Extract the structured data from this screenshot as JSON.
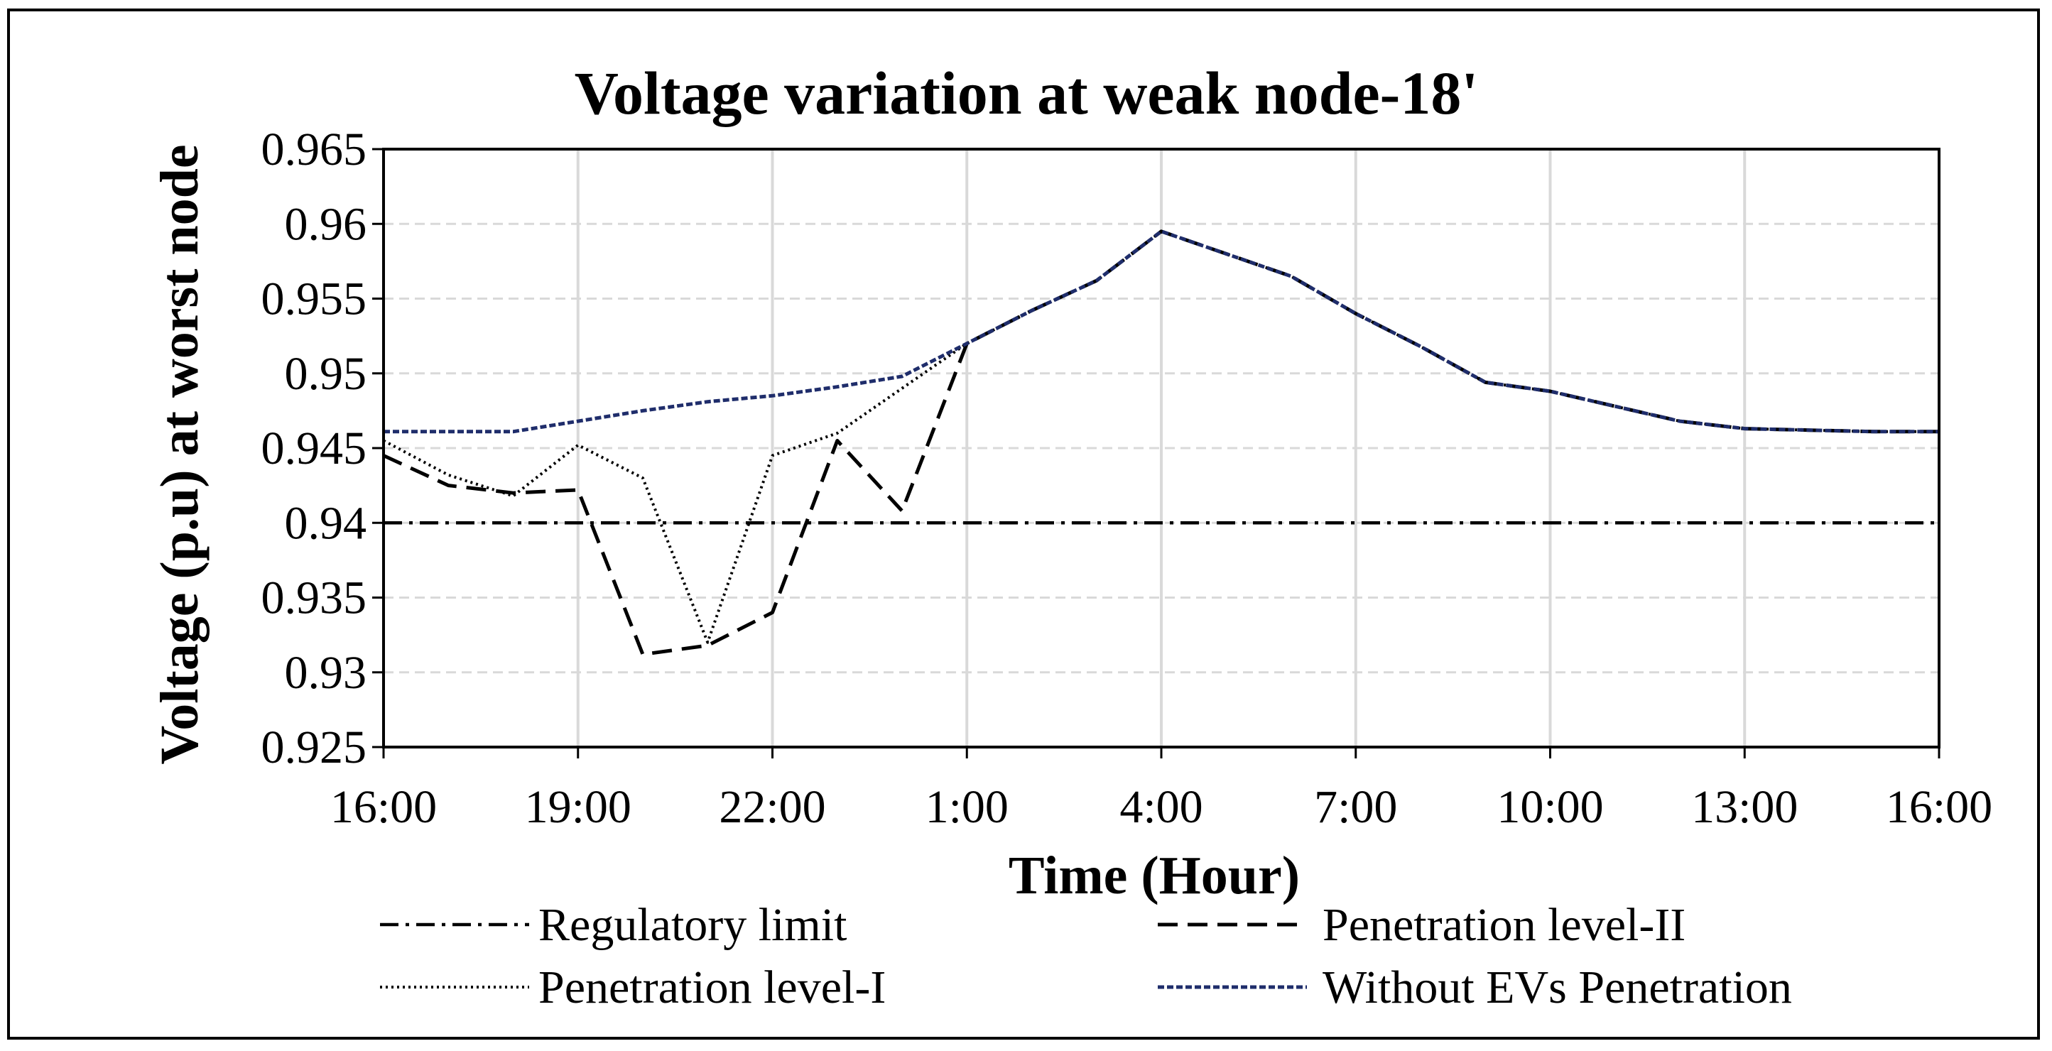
{
  "chart_data": {
    "type": "line",
    "title": "Voltage variation at weak node-18'",
    "xlabel": "Time (Hour)",
    "ylabel": "Voltage (p.u) at worst node",
    "x": [
      "16:00",
      "17:00",
      "18:00",
      "19:00",
      "20:00",
      "21:00",
      "22:00",
      "23:00",
      "0:00",
      "1:00",
      "2:00",
      "3:00",
      "4:00",
      "5:00",
      "6:00",
      "7:00",
      "8:00",
      "9:00",
      "10:00",
      "11:00",
      "12:00",
      "13:00",
      "14:00",
      "15:00",
      "16:00"
    ],
    "xtick_labels": [
      "16:00",
      "19:00",
      "22:00",
      "1:00",
      "4:00",
      "7:00",
      "10:00",
      "13:00",
      "16:00"
    ],
    "ylim": [
      0.925,
      0.965
    ],
    "ytick_labels": [
      "0.925",
      "0.93",
      "0.935",
      "0.94",
      "0.945",
      "0.95",
      "0.955",
      "0.96",
      "0.965"
    ],
    "grid": true,
    "legend_position": "bottom",
    "series": [
      {
        "name": "Regulatory limit",
        "style": "dash-dot",
        "color": "#000000",
        "values": [
          0.94,
          0.94,
          0.94,
          0.94,
          0.94,
          0.94,
          0.94,
          0.94,
          0.94,
          0.94,
          0.94,
          0.94,
          0.94,
          0.94,
          0.94,
          0.94,
          0.94,
          0.94,
          0.94,
          0.94,
          0.94,
          0.94,
          0.94,
          0.94,
          0.94
        ]
      },
      {
        "name": "Penetration level-II",
        "style": "dashed",
        "color": "#000000",
        "values": [
          0.9445,
          0.9425,
          0.942,
          0.9422,
          0.9312,
          0.9318,
          0.934,
          0.9455,
          0.9408,
          0.952,
          0.9542,
          0.9562,
          0.9595,
          0.958,
          0.9565,
          0.954,
          0.9518,
          0.9494,
          0.9488,
          0.9478,
          0.9468,
          0.9463,
          0.9462,
          0.9461,
          0.9461
        ]
      },
      {
        "name": "Penetration level-I",
        "style": "dotted",
        "color": "#000000",
        "values": [
          0.9455,
          0.9432,
          0.9418,
          0.9452,
          0.943,
          0.932,
          0.9445,
          0.946,
          0.949,
          0.952,
          0.9542,
          0.9562,
          0.9595,
          0.958,
          0.9565,
          0.954,
          0.9518,
          0.9494,
          0.9488,
          0.9478,
          0.9468,
          0.9463,
          0.9462,
          0.9461,
          0.9461
        ]
      },
      {
        "name": "Without EVs Penetration",
        "style": "dashed-fine",
        "color": "#1f2d6b",
        "values": [
          0.9461,
          0.9461,
          0.9461,
          0.9468,
          0.9475,
          0.9481,
          0.9485,
          0.9491,
          0.9498,
          0.952,
          0.9542,
          0.9562,
          0.9595,
          0.958,
          0.9565,
          0.954,
          0.9518,
          0.9494,
          0.9488,
          0.9478,
          0.9468,
          0.9463,
          0.9462,
          0.9461,
          0.9461
        ]
      }
    ],
    "legend": [
      "Regulatory limit",
      "Penetration level-II",
      "Penetration level-I",
      "Without EVs Penetration"
    ]
  },
  "colors": {
    "grid": "#d9d9d9",
    "axis": "#000000",
    "series_blue": "#1f2d6b"
  }
}
